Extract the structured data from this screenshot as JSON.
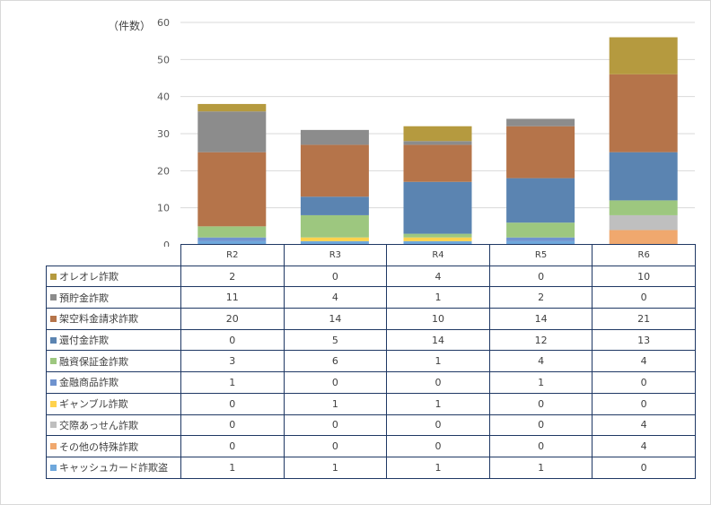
{
  "chart_data": {
    "type": "bar",
    "stacked": true,
    "unit_label": "（件数）",
    "categories": [
      "R2",
      "R3",
      "R4",
      "R5",
      "R6"
    ],
    "ylim": [
      0,
      60
    ],
    "yticks": [
      "0",
      "10",
      "20",
      "30",
      "40",
      "50",
      "60"
    ],
    "grid": true,
    "series": [
      {
        "name": "オレオレ詐欺",
        "color": "#b59a3f",
        "values": [
          2,
          0,
          4,
          0,
          10
        ]
      },
      {
        "name": "預貯金詐欺",
        "color": "#8c8c8c",
        "values": [
          11,
          4,
          1,
          2,
          0
        ]
      },
      {
        "name": "架空料金請求詐欺",
        "color": "#b5744a",
        "values": [
          20,
          14,
          10,
          14,
          21
        ]
      },
      {
        "name": "還付金詐欺",
        "color": "#5b84b1",
        "values": [
          0,
          5,
          14,
          12,
          13
        ]
      },
      {
        "name": "融資保証金詐欺",
        "color": "#9dc77f",
        "values": [
          3,
          6,
          1,
          4,
          4
        ]
      },
      {
        "name": "金融商品詐欺",
        "color": "#6f93cf",
        "values": [
          1,
          0,
          0,
          1,
          0
        ]
      },
      {
        "name": "ギャンブル詐欺",
        "color": "#ffd24d",
        "values": [
          0,
          1,
          1,
          0,
          0
        ]
      },
      {
        "name": "交際あっせん詐欺",
        "color": "#bfbfbf",
        "values": [
          0,
          0,
          0,
          0,
          4
        ]
      },
      {
        "name": "その他の特殊詐欺",
        "color": "#f0a86e",
        "values": [
          0,
          0,
          0,
          0,
          4
        ]
      },
      {
        "name": "キャッシュカード詐欺盗",
        "color": "#6fa8dc",
        "values": [
          1,
          1,
          1,
          1,
          0
        ]
      }
    ]
  }
}
